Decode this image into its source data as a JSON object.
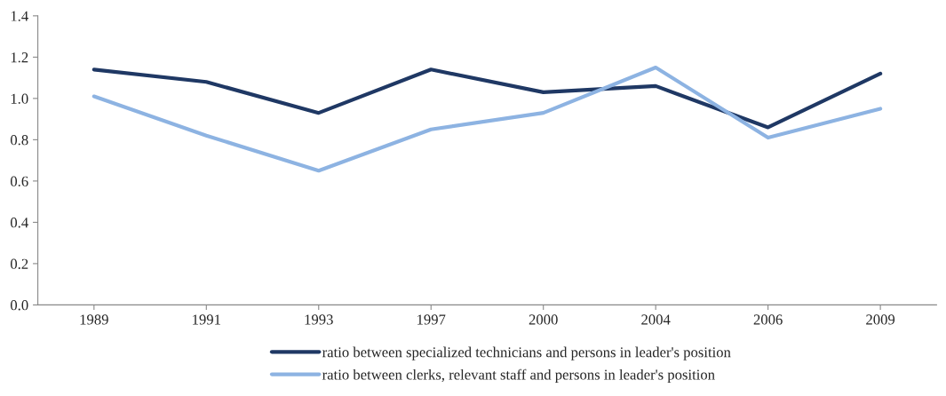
{
  "chart_data": {
    "type": "line",
    "categories": [
      "1989",
      "1991",
      "1993",
      "1997",
      "2000",
      "2004",
      "2006",
      "2009"
    ],
    "series": [
      {
        "name": "ratio between specialized technicians and persons in leader's position",
        "color": "#1f3864",
        "values": [
          1.14,
          1.08,
          0.93,
          1.14,
          1.03,
          1.06,
          0.86,
          1.12
        ]
      },
      {
        "name": "ratio between clerks, relevant staff and persons in leader's position",
        "color": "#8db3e2",
        "values": [
          1.01,
          0.82,
          0.65,
          0.85,
          0.93,
          1.15,
          0.81,
          0.95
        ]
      }
    ],
    "ylim": [
      0,
      1.4
    ],
    "yticks": [
      {
        "value": 0,
        "label": "0.0"
      },
      {
        "value": 0.2,
        "label": "0.2"
      },
      {
        "value": 0.4,
        "label": "0.4"
      },
      {
        "value": 0.6,
        "label": "0.6"
      },
      {
        "value": 0.8,
        "label": "0.8"
      },
      {
        "value": 1.0,
        "label": "1.0"
      },
      {
        "value": 1.2,
        "label": "1.2"
      },
      {
        "value": 1.4,
        "label": "1.4"
      }
    ],
    "grid": false,
    "legend": "bottom",
    "marker": "none",
    "line_style": "solid"
  }
}
